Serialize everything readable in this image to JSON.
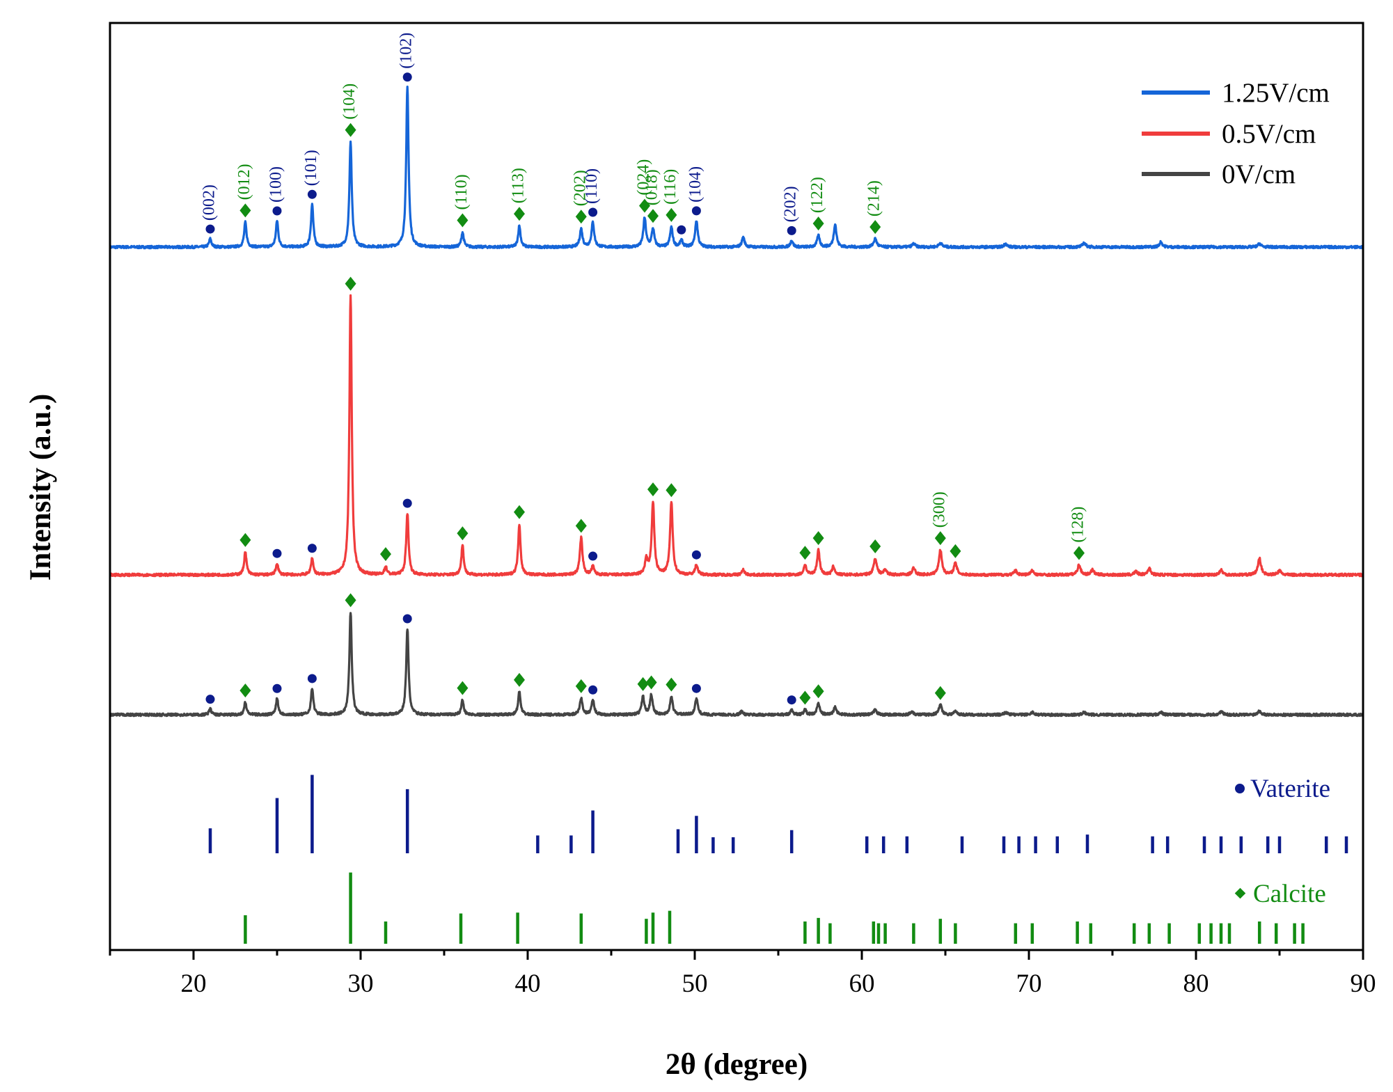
{
  "chart_data": {
    "type": "line",
    "subtype": "xrd_pattern",
    "xlabel": "2θ (degree)",
    "ylabel": "Intensity (a.u.)",
    "xlim": [
      15,
      90
    ],
    "xticks": [
      20,
      30,
      40,
      50,
      60,
      70,
      80,
      90
    ],
    "colors": {
      "blue": "#1565d8",
      "red": "#f03c3c",
      "gray": "#444444",
      "vaterite": "#0c1b8c",
      "calcite": "#128c12"
    },
    "legend": [
      "1.25V/cm",
      "0.5V/cm",
      "0V/cm"
    ],
    "series": [
      {
        "name": "1.25V/cm",
        "color": "#1565d8",
        "peaks": [
          [
            21.0,
            10
          ],
          [
            23.1,
            30
          ],
          [
            25.0,
            32
          ],
          [
            27.1,
            52
          ],
          [
            29.4,
            128
          ],
          [
            32.8,
            195
          ],
          [
            36.1,
            18
          ],
          [
            39.5,
            26
          ],
          [
            43.2,
            22
          ],
          [
            43.9,
            30
          ],
          [
            47.0,
            35
          ],
          [
            47.5,
            22
          ],
          [
            48.6,
            24
          ],
          [
            49.2,
            8
          ],
          [
            50.1,
            32
          ],
          [
            52.9,
            12
          ],
          [
            55.8,
            8
          ],
          [
            57.4,
            14
          ],
          [
            58.4,
            28
          ],
          [
            60.8,
            10
          ],
          [
            63.1,
            4
          ],
          [
            64.7,
            5
          ],
          [
            68.6,
            4
          ],
          [
            73.3,
            5
          ],
          [
            77.9,
            6
          ],
          [
            83.8,
            4
          ]
        ]
      },
      {
        "name": "0.5V/cm",
        "color": "#f03c3c",
        "peaks": [
          [
            23.1,
            28
          ],
          [
            25.0,
            14
          ],
          [
            27.1,
            20
          ],
          [
            29.4,
            340
          ],
          [
            31.5,
            10
          ],
          [
            32.8,
            75
          ],
          [
            36.1,
            36
          ],
          [
            39.5,
            62
          ],
          [
            43.2,
            45
          ],
          [
            43.9,
            10
          ],
          [
            47.1,
            18
          ],
          [
            47.5,
            88
          ],
          [
            48.6,
            88
          ],
          [
            50.1,
            12
          ],
          [
            52.9,
            6
          ],
          [
            56.6,
            12
          ],
          [
            57.4,
            30
          ],
          [
            58.3,
            10
          ],
          [
            60.8,
            20
          ],
          [
            61.4,
            6
          ],
          [
            63.1,
            8
          ],
          [
            64.7,
            30
          ],
          [
            65.6,
            14
          ],
          [
            69.2,
            5
          ],
          [
            70.2,
            5
          ],
          [
            73.0,
            12
          ],
          [
            73.8,
            6
          ],
          [
            76.4,
            4
          ],
          [
            77.2,
            8
          ],
          [
            81.5,
            6
          ],
          [
            83.8,
            20
          ],
          [
            85.0,
            5
          ]
        ]
      },
      {
        "name": "0V/cm",
        "color": "#444444",
        "peaks": [
          [
            21.0,
            7
          ],
          [
            23.1,
            15
          ],
          [
            25.0,
            20
          ],
          [
            27.1,
            32
          ],
          [
            29.4,
            125
          ],
          [
            32.8,
            105
          ],
          [
            36.1,
            18
          ],
          [
            39.5,
            28
          ],
          [
            43.2,
            20
          ],
          [
            43.9,
            18
          ],
          [
            46.9,
            22
          ],
          [
            47.4,
            24
          ],
          [
            48.6,
            22
          ],
          [
            50.1,
            20
          ],
          [
            52.8,
            4
          ],
          [
            55.8,
            6
          ],
          [
            56.6,
            6
          ],
          [
            57.4,
            14
          ],
          [
            58.4,
            10
          ],
          [
            60.8,
            6
          ],
          [
            63.0,
            4
          ],
          [
            64.7,
            12
          ],
          [
            65.6,
            4
          ],
          [
            68.6,
            3
          ],
          [
            70.2,
            3
          ],
          [
            73.3,
            3
          ],
          [
            77.9,
            3
          ],
          [
            81.5,
            4
          ],
          [
            83.8,
            5
          ]
        ]
      }
    ],
    "vaterite_markers": {
      "1.25V/cm": [
        21.0,
        25.0,
        27.1,
        32.8,
        43.9,
        49.2,
        50.1,
        55.8
      ],
      "0.5V/cm": [
        25.0,
        27.1,
        32.8,
        43.9,
        50.1
      ],
      "0V/cm": [
        21.0,
        25.0,
        27.1,
        32.8,
        43.9,
        50.1,
        55.8
      ]
    },
    "calcite_markers": {
      "1.25V/cm": [
        23.1,
        29.4,
        36.1,
        39.5,
        43.2,
        47.0,
        47.5,
        48.6,
        57.4,
        60.8
      ],
      "0.5V/cm": [
        23.1,
        29.4,
        31.5,
        36.1,
        39.5,
        43.2,
        47.5,
        48.6,
        56.6,
        57.4,
        60.8,
        64.7,
        65.6,
        73.0
      ],
      "0V/cm": [
        23.1,
        29.4,
        36.1,
        39.5,
        43.2,
        46.9,
        47.4,
        48.6,
        56.6,
        57.4,
        64.7
      ]
    },
    "peak_labels": [
      {
        "text": "(002)",
        "x": 21.0,
        "series": "1.25V/cm",
        "phase": "vaterite"
      },
      {
        "text": "(012)",
        "x": 23.1,
        "series": "1.25V/cm",
        "phase": "calcite"
      },
      {
        "text": "(100)",
        "x": 25.0,
        "series": "1.25V/cm",
        "phase": "vaterite"
      },
      {
        "text": "(101)",
        "x": 27.1,
        "series": "1.25V/cm",
        "phase": "vaterite"
      },
      {
        "text": "(104)",
        "x": 29.4,
        "series": "1.25V/cm",
        "phase": "calcite"
      },
      {
        "text": "(102)",
        "x": 32.8,
        "series": "1.25V/cm",
        "phase": "vaterite"
      },
      {
        "text": "(110)",
        "x": 36.1,
        "series": "1.25V/cm",
        "phase": "calcite"
      },
      {
        "text": "(113)",
        "x": 39.5,
        "series": "1.25V/cm",
        "phase": "calcite"
      },
      {
        "text": "(202)",
        "x": 43.2,
        "series": "1.25V/cm",
        "phase": "calcite"
      },
      {
        "text": "(110)",
        "x": 43.9,
        "series": "1.25V/cm",
        "phase": "vaterite"
      },
      {
        "text": "(024)",
        "x": 47.0,
        "series": "1.25V/cm",
        "phase": "calcite"
      },
      {
        "text": "(018)",
        "x": 47.5,
        "series": "1.25V/cm",
        "phase": "calcite"
      },
      {
        "text": "(116)",
        "x": 48.6,
        "series": "1.25V/cm",
        "phase": "calcite"
      },
      {
        "text": "(104)",
        "x": 50.1,
        "series": "1.25V/cm",
        "phase": "vaterite"
      },
      {
        "text": "(202)",
        "x": 55.8,
        "series": "1.25V/cm",
        "phase": "vaterite"
      },
      {
        "text": "(122)",
        "x": 57.4,
        "series": "1.25V/cm",
        "phase": "calcite"
      },
      {
        "text": "(214)",
        "x": 60.8,
        "series": "1.25V/cm",
        "phase": "calcite"
      },
      {
        "text": "(300)",
        "x": 64.7,
        "series": "0.5V/cm",
        "phase": "calcite"
      },
      {
        "text": "(128)",
        "x": 73.0,
        "series": "0.5V/cm",
        "phase": "calcite"
      }
    ],
    "reference": {
      "vaterite": {
        "label": "Vaterite",
        "lines": [
          [
            21.0,
            28
          ],
          [
            25.0,
            62
          ],
          [
            27.1,
            88
          ],
          [
            32.8,
            72
          ],
          [
            40.6,
            20
          ],
          [
            42.6,
            20
          ],
          [
            43.9,
            48
          ],
          [
            49.0,
            27
          ],
          [
            50.1,
            42
          ],
          [
            51.1,
            18
          ],
          [
            52.3,
            18
          ],
          [
            55.8,
            26
          ],
          [
            60.3,
            19
          ],
          [
            61.3,
            19
          ],
          [
            62.7,
            19
          ],
          [
            66.0,
            19
          ],
          [
            68.5,
            19
          ],
          [
            69.4,
            19
          ],
          [
            70.4,
            19
          ],
          [
            71.7,
            19
          ],
          [
            73.5,
            21
          ],
          [
            77.4,
            19
          ],
          [
            78.3,
            19
          ],
          [
            80.5,
            19
          ],
          [
            81.5,
            19
          ],
          [
            82.7,
            19
          ],
          [
            84.3,
            19
          ],
          [
            85.0,
            19
          ],
          [
            87.8,
            19
          ],
          [
            89.0,
            19
          ]
        ]
      },
      "calcite": {
        "label": "Calcite",
        "lines": [
          [
            23.1,
            32
          ],
          [
            29.4,
            80
          ],
          [
            31.5,
            25
          ],
          [
            36.0,
            34
          ],
          [
            39.4,
            35
          ],
          [
            43.2,
            34
          ],
          [
            47.1,
            28
          ],
          [
            47.5,
            35
          ],
          [
            48.5,
            37
          ],
          [
            56.6,
            25
          ],
          [
            57.4,
            29
          ],
          [
            58.1,
            23
          ],
          [
            60.7,
            25
          ],
          [
            61.0,
            23
          ],
          [
            61.4,
            23
          ],
          [
            63.1,
            23
          ],
          [
            64.7,
            28
          ],
          [
            65.6,
            23
          ],
          [
            69.2,
            23
          ],
          [
            70.2,
            23
          ],
          [
            72.9,
            25
          ],
          [
            73.7,
            23
          ],
          [
            76.3,
            23
          ],
          [
            77.2,
            23
          ],
          [
            78.4,
            23
          ],
          [
            80.2,
            23
          ],
          [
            80.9,
            23
          ],
          [
            81.5,
            23
          ],
          [
            82.0,
            23
          ],
          [
            83.8,
            25
          ],
          [
            84.8,
            23
          ],
          [
            85.9,
            23
          ],
          [
            86.4,
            23
          ]
        ]
      }
    }
  }
}
